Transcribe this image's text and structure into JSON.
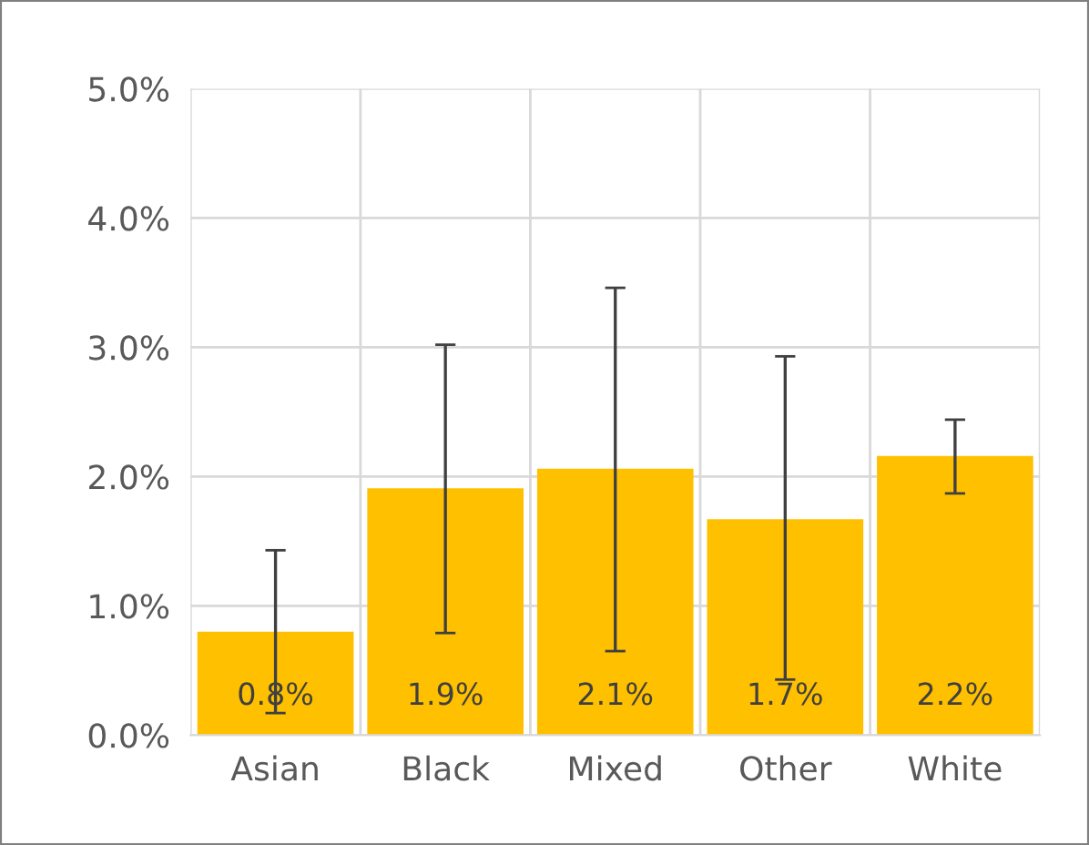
{
  "chart_data": {
    "type": "bar",
    "categories": [
      "Asian",
      "Black",
      "Mixed",
      "Other",
      "White"
    ],
    "values": [
      0.8,
      1.91,
      2.06,
      1.67,
      2.16
    ],
    "color": "#ffc000",
    "errors": [
      [
        0.17,
        1.43
      ],
      [
        0.79,
        3.02
      ],
      [
        0.65,
        3.46
      ],
      [
        0.43,
        2.93
      ],
      [
        1.87,
        2.44
      ]
    ],
    "value_labels": [
      "0.8%",
      "1.9%",
      "2.1%",
      "1.7%",
      "2.2%"
    ],
    "ylim": [
      0,
      5
    ],
    "yticks": [
      {
        "value": 0,
        "label": "0.0%"
      },
      {
        "value": 1,
        "label": "1.0%"
      },
      {
        "value": 2,
        "label": "2.0%"
      },
      {
        "value": 3,
        "label": "3.0%"
      },
      {
        "value": 4,
        "label": "4.0%"
      },
      {
        "value": 5,
        "label": "5.0%"
      }
    ],
    "grid": true,
    "legend": false
  }
}
